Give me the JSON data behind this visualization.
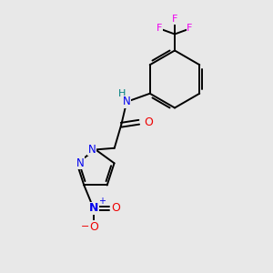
{
  "bg_color": "#e8e8e8",
  "bond_color": "#000000",
  "N_color": "#0000ee",
  "O_color": "#ee0000",
  "F_color": "#ee00ee",
  "H_color": "#008080",
  "figsize": [
    3.0,
    3.0
  ],
  "dpi": 100,
  "xlim": [
    0,
    10
  ],
  "ylim": [
    0,
    10
  ]
}
